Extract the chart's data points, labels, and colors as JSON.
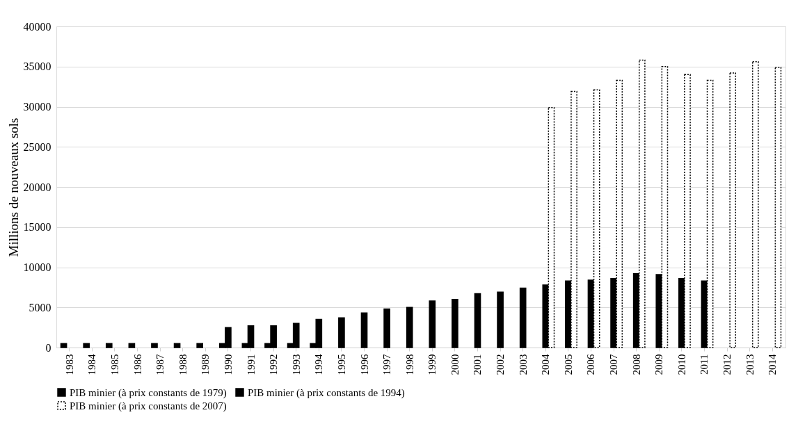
{
  "chart_data": {
    "type": "bar",
    "ylabel": "Millions de nouveaux sols",
    "categories": [
      "1983",
      "1984",
      "1985",
      "1986",
      "1987",
      "1988",
      "1989",
      "1990",
      "1991",
      "1992",
      "1993",
      "1994",
      "1995",
      "1996",
      "1997",
      "1998",
      "1999",
      "2000",
      "2001",
      "2002",
      "2003",
      "2004",
      "2005",
      "2006",
      "2007",
      "2008",
      "2009",
      "2010",
      "2011",
      "2012",
      "2013",
      "2014"
    ],
    "series": [
      {
        "name": "PIB minier (à prix constants de 1979)",
        "color": "#000000",
        "line_style": "solid",
        "values": [
          500,
          500,
          500,
          500,
          500,
          500,
          500,
          500,
          500,
          500,
          500,
          500,
          null,
          null,
          null,
          null,
          null,
          null,
          null,
          null,
          null,
          null,
          null,
          null,
          null,
          null,
          null,
          null,
          null,
          null,
          null,
          null
        ]
      },
      {
        "name": "PIB minier (à prix constants de 1994)",
        "color": "#000000",
        "line_style": "solid",
        "values": [
          null,
          null,
          null,
          null,
          null,
          null,
          null,
          2500,
          2700,
          2700,
          3000,
          3500,
          3700,
          4300,
          4800,
          5000,
          5800,
          6000,
          6700,
          6900,
          7400,
          7800,
          8300,
          8400,
          8600,
          9200,
          9100,
          8600,
          8300,
          null,
          null,
          null
        ]
      },
      {
        "name": "PIB minier (à prix constants de 2007)",
        "color": "#ffffff",
        "line_style": "dotted",
        "values": [
          null,
          null,
          null,
          null,
          null,
          null,
          null,
          null,
          null,
          null,
          null,
          null,
          null,
          null,
          null,
          null,
          null,
          null,
          null,
          null,
          null,
          29900,
          31900,
          32100,
          33300,
          35800,
          35000,
          34000,
          33300,
          34200,
          35600,
          34900
        ]
      }
    ],
    "ylim": [
      0,
      40000
    ],
    "yticks": [
      0,
      5000,
      10000,
      15000,
      20000,
      25000,
      30000,
      35000,
      40000
    ],
    "grid": "y",
    "legend": "bottom"
  }
}
